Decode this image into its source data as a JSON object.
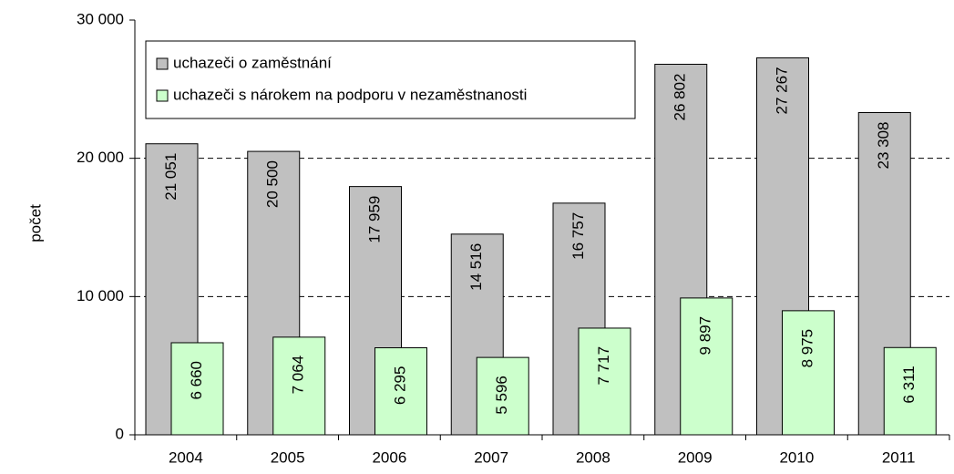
{
  "chart_data": {
    "type": "bar",
    "y_label": "počet",
    "categories": [
      "2004",
      "2005",
      "2006",
      "2007",
      "2008",
      "2009",
      "2010",
      "2011"
    ],
    "series": [
      {
        "name": "uchazeči o zaměstnání",
        "color": "#c0c0c0",
        "values": [
          21051,
          20500,
          17959,
          14516,
          16757,
          26802,
          27267,
          23308
        ],
        "value_labels": [
          "21 051",
          "20 500",
          "17 959",
          "14 516",
          "16 757",
          "26 802",
          "27 267",
          "23 308"
        ]
      },
      {
        "name": "uchazeči s nárokem na podporu v nezaměstnanosti",
        "color": "#ccffcc",
        "values": [
          6660,
          7064,
          6295,
          5596,
          7717,
          9897,
          8975,
          6311
        ],
        "value_labels": [
          "6 660",
          "7 064",
          "6 295",
          "5 596",
          "7 717",
          "9 897",
          "8 975",
          "6 311"
        ]
      }
    ],
    "ylim": [
      0,
      30000
    ],
    "yticks": [
      {
        "value": 0,
        "label": "0"
      },
      {
        "value": 10000,
        "label": "10 000"
      },
      {
        "value": 20000,
        "label": "20 000"
      },
      {
        "value": 30000,
        "label": "30 000"
      }
    ],
    "grid": true
  }
}
